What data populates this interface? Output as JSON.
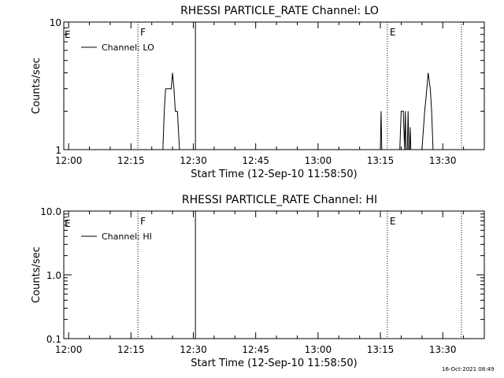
{
  "timestamp": "16-Oct-2021 08:49",
  "chart_data": [
    {
      "type": "line",
      "title": "RHESSI PARTICLE_RATE Channel: LO",
      "xlabel": "Start Time (12-Sep-10 11:58:50)",
      "ylabel": "Counts/sec",
      "x_scale": "time",
      "y_scale": "log",
      "xlim": [
        "11:58:50",
        "13:40:00"
      ],
      "ylim": [
        1,
        10
      ],
      "x_ticks": [
        "12:00",
        "12:15",
        "12:30",
        "12:45",
        "13:00",
        "13:15",
        "13:30"
      ],
      "y_ticks": [
        {
          "value": 1,
          "label": "1"
        },
        {
          "value": 10,
          "label": "10"
        }
      ],
      "legend": {
        "position": "top-left",
        "entries": [
          "Channel: LO"
        ]
      },
      "event_markers": [
        {
          "time": "12:16:40",
          "label": "F",
          "style": "dotted"
        },
        {
          "time": "13:16:40",
          "label": "E",
          "style": "dotted"
        },
        {
          "time": "13:34:30",
          "label": "",
          "style": "dotted"
        },
        {
          "time": "12:30:30",
          "label": "",
          "style": "solid"
        }
      ],
      "edge_label": "E",
      "series": [
        {
          "name": "Channel: LO",
          "points": [
            [
              "12:22:40",
              1
            ],
            [
              "12:23:00",
              2.0
            ],
            [
              "12:23:20",
              3.0
            ],
            [
              "12:24:00",
              3.0
            ],
            [
              "12:24:40",
              3.0
            ],
            [
              "12:25:00",
              4.0
            ],
            [
              "12:25:20",
              3.0
            ],
            [
              "12:25:40",
              2.0
            ],
            [
              "12:26:10",
              2.0
            ],
            [
              "12:26:40",
              1
            ],
            [
              "13:15:00",
              1
            ],
            [
              "13:15:10",
              2.0
            ],
            [
              "13:15:20",
              1
            ],
            [
              "13:19:40",
              1
            ],
            [
              "13:20:00",
              2.0
            ],
            [
              "13:20:30",
              2.0
            ],
            [
              "13:20:50",
              1
            ],
            [
              "13:21:00",
              2.0
            ],
            [
              "13:21:10",
              1
            ],
            [
              "13:21:30",
              1
            ],
            [
              "13:21:40",
              2.0
            ],
            [
              "13:21:50",
              1
            ],
            [
              "13:22:00",
              1
            ],
            [
              "13:22:10",
              1.5
            ],
            [
              "13:22:20",
              1
            ],
            [
              "13:25:00",
              1
            ],
            [
              "13:25:40",
              2.0
            ],
            [
              "13:26:10",
              3.0
            ],
            [
              "13:26:30",
              4.0
            ],
            [
              "13:27:00",
              3.0
            ],
            [
              "13:27:20",
              2.0
            ],
            [
              "13:27:40",
              1
            ]
          ]
        }
      ]
    },
    {
      "type": "line",
      "title": "RHESSI PARTICLE_RATE Channel: HI",
      "xlabel": "Start Time (12-Sep-10 11:58:50)",
      "ylabel": "Counts/sec",
      "x_scale": "time",
      "y_scale": "log",
      "xlim": [
        "11:58:50",
        "13:40:00"
      ],
      "ylim": [
        0.1,
        10
      ],
      "x_ticks": [
        "12:00",
        "12:15",
        "12:30",
        "12:45",
        "13:00",
        "13:15",
        "13:30"
      ],
      "y_ticks": [
        {
          "value": 0.1,
          "label": "0.1"
        },
        {
          "value": 1,
          "label": "1.0"
        },
        {
          "value": 10,
          "label": "10.0"
        }
      ],
      "legend": {
        "position": "top-left",
        "entries": [
          "Channel: HI"
        ]
      },
      "event_markers": [
        {
          "time": "12:16:40",
          "label": "F",
          "style": "dotted"
        },
        {
          "time": "13:16:40",
          "label": "E",
          "style": "dotted"
        },
        {
          "time": "13:34:30",
          "label": "",
          "style": "dotted"
        },
        {
          "time": "12:30:30",
          "label": "",
          "style": "solid"
        }
      ],
      "edge_label": "E",
      "series": [
        {
          "name": "Channel: HI",
          "points": []
        }
      ]
    }
  ]
}
